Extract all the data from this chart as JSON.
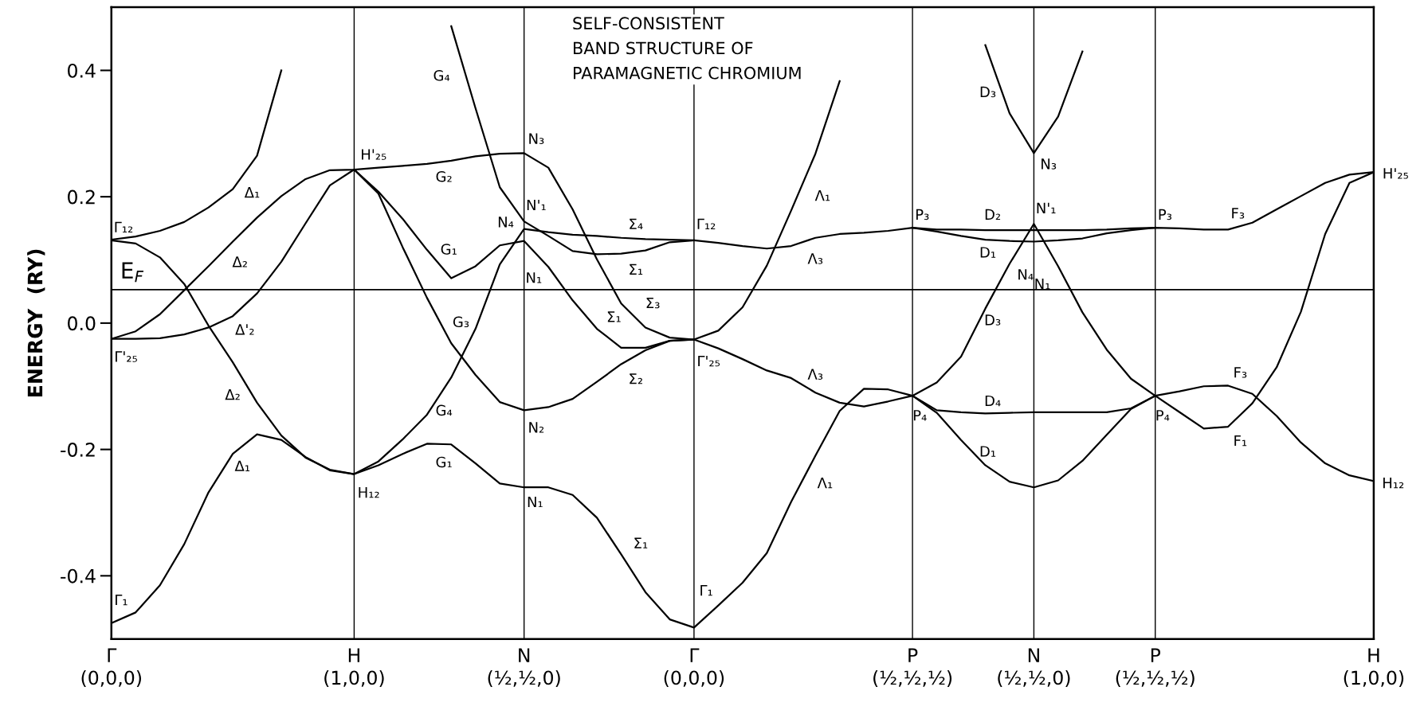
{
  "chart_data": {
    "type": "line",
    "title": "SELF-CONSISTENT\nBAND STRUCTURE OF\nPARAMAGNETIC CHROMIUM",
    "ylabel": "ENERGY  (RY)",
    "categories": [
      "Γ\n(0,0,0)",
      null,
      null,
      null,
      null,
      null,
      null,
      null,
      null,
      null,
      "H\n(1,0,0)",
      null,
      null,
      null,
      null,
      null,
      null,
      "N\n(½,½,0)",
      null,
      null,
      null,
      null,
      null,
      null,
      "Γ\n(0,0,0)",
      null,
      null,
      null,
      null,
      null,
      null,
      null,
      null,
      "P\n(½,½,½)",
      null,
      null,
      null,
      null,
      "N\n(½,½,0)",
      null,
      null,
      null,
      null,
      "P\n(½,½,½)",
      null,
      null,
      null,
      null,
      null,
      null,
      null,
      null,
      "H\n(1,0,0)"
    ],
    "ylim": [
      -0.5,
      0.5
    ],
    "yticks": [
      -0.4,
      -0.2,
      {
        "value": 0,
        "label": "0.0"
      },
      0.2,
      0.4
    ],
    "grid": "x",
    "legend": false,
    "ref_lines": [
      {
        "axis": "y",
        "value": 0.053,
        "label": "E$_{F}$",
        "color": "#000000"
      }
    ],
    "series": [
      {
        "color": "#000000",
        "values": [
          -0.475,
          -0.458,
          -0.415,
          -0.35,
          -0.268,
          -0.207,
          -0.176,
          -0.185,
          -0.212,
          -0.233,
          -0.239,
          -0.225,
          -0.207,
          -0.191,
          -0.192,
          -0.222,
          -0.254,
          -0.26,
          -0.26,
          -0.272,
          -0.308,
          -0.366,
          -0.426,
          -0.469,
          -0.482,
          -0.447,
          -0.411,
          -0.364,
          -0.283,
          -0.21,
          -0.139,
          -0.104,
          -0.105,
          -0.115,
          -0.142,
          -0.185,
          -0.225,
          -0.251,
          -0.26,
          -0.249,
          -0.218,
          -0.177,
          -0.136,
          -0.115,
          -0.108,
          -0.1,
          -0.099,
          -0.112,
          -0.147,
          -0.189,
          -0.222,
          -0.241,
          -0.25
        ]
      },
      {
        "color": "#000000",
        "values": [
          0.131,
          0.126,
          0.104,
          0.062,
          -0.004,
          -0.062,
          -0.126,
          -0.178,
          -0.213,
          -0.232,
          -0.239,
          -0.219,
          -0.184,
          -0.145,
          -0.086,
          -0.009,
          0.093,
          0.149,
          0.144,
          0.14,
          0.138,
          0.135,
          0.133,
          0.132,
          0.131,
          0.127,
          0.122,
          0.118,
          0.122,
          0.135,
          0.141,
          0.143,
          0.146,
          0.151,
          0.148,
          0.148,
          0.147,
          0.147,
          0.147,
          0.147,
          0.147,
          0.148,
          0.15,
          0.151,
          0.15,
          0.148,
          0.148,
          0.159,
          0.18,
          0.201,
          0.222,
          0.235,
          0.239
        ]
      },
      {
        "color": "#000000",
        "values": [
          -0.025,
          -0.013,
          0.014,
          0.052,
          0.09,
          0.129,
          0.167,
          0.201,
          0.228,
          0.242,
          0.243,
          0.246,
          0.249,
          0.252,
          0.257,
          0.264,
          0.268,
          0.269,
          0.246,
          0.18,
          0.101,
          0.031,
          -0.007,
          -0.023,
          -0.026,
          -0.04,
          -0.057,
          -0.075,
          -0.087,
          -0.11,
          -0.126,
          -0.132,
          -0.124,
          -0.115,
          -0.138,
          -0.141,
          -0.143,
          -0.142,
          -0.141,
          -0.141,
          -0.141,
          -0.141,
          -0.135,
          -0.115,
          -0.141,
          -0.167,
          -0.164,
          -0.127,
          -0.07,
          0.018,
          0.141,
          0.222,
          0.239
        ]
      },
      {
        "color": "#000000",
        "values": [
          -0.025,
          -0.025,
          -0.024,
          -0.018,
          -0.007,
          0.011,
          0.047,
          0.097,
          0.158,
          0.218,
          0.243,
          0.208,
          0.165,
          0.116,
          0.071,
          0.09,
          0.123,
          0.13,
          0.089,
          0.036,
          -0.009,
          -0.039,
          -0.039,
          -0.028,
          -0.026,
          -0.012,
          0.025,
          0.091,
          0.178,
          0.268,
          0.383,
          null,
          null,
          null,
          null,
          null,
          null,
          null,
          null,
          null,
          null,
          null,
          null,
          null,
          null,
          null,
          null,
          null,
          null,
          null,
          null,
          null,
          null
        ]
      },
      {
        "color": "#000000",
        "values": [
          null,
          null,
          null,
          null,
          null,
          null,
          null,
          null,
          null,
          null,
          0.243,
          0.205,
          0.12,
          0.04,
          -0.032,
          -0.082,
          -0.125,
          -0.138,
          -0.133,
          -0.12,
          -0.093,
          -0.065,
          -0.043,
          -0.028,
          -0.026,
          null,
          null,
          null,
          null,
          null,
          null,
          null,
          null,
          null,
          null,
          null,
          null,
          null,
          null,
          null,
          null,
          null,
          null,
          null,
          null,
          null,
          null,
          null,
          null,
          null,
          null,
          null,
          null
        ]
      },
      {
        "color": "#000000",
        "values": [
          null,
          null,
          null,
          null,
          null,
          null,
          null,
          null,
          null,
          null,
          null,
          null,
          null,
          null,
          0.47,
          0.34,
          0.215,
          0.161,
          0.138,
          0.114,
          0.109,
          0.11,
          0.115,
          0.128,
          0.131,
          null,
          null,
          null,
          null,
          null,
          null,
          null,
          null,
          null,
          null,
          null,
          null,
          null,
          null,
          null,
          null,
          null,
          null,
          null,
          null,
          null,
          null,
          null,
          null,
          null,
          null,
          null,
          null
        ]
      },
      {
        "color": "#000000",
        "values": [
          0.132,
          0.137,
          0.146,
          0.16,
          0.183,
          0.212,
          0.265,
          0.4,
          null,
          null,
          null,
          null,
          null,
          null,
          null,
          null,
          null,
          null,
          null,
          null,
          null,
          null,
          null,
          null,
          null,
          null,
          null,
          null,
          null,
          null,
          null,
          null,
          null,
          null,
          null,
          null,
          null,
          null,
          null,
          null,
          null,
          null,
          null,
          null,
          null,
          null,
          null,
          null,
          null,
          null,
          null,
          null,
          null
        ]
      },
      {
        "color": "#000000",
        "values": [
          null,
          null,
          null,
          null,
          null,
          null,
          null,
          null,
          null,
          null,
          null,
          null,
          null,
          null,
          null,
          null,
          null,
          null,
          null,
          null,
          null,
          null,
          null,
          null,
          null,
          null,
          null,
          null,
          null,
          null,
          null,
          null,
          null,
          0.151,
          0.145,
          0.138,
          0.132,
          0.13,
          0.129,
          0.131,
          0.134,
          0.142,
          0.147,
          0.151,
          null,
          null,
          null,
          null,
          null,
          null,
          null,
          null,
          null
        ]
      },
      {
        "color": "#000000",
        "values": [
          null,
          null,
          null,
          null,
          null,
          null,
          null,
          null,
          null,
          null,
          null,
          null,
          null,
          null,
          null,
          null,
          null,
          null,
          null,
          null,
          null,
          null,
          null,
          null,
          null,
          null,
          null,
          null,
          null,
          null,
          null,
          null,
          null,
          -0.115,
          -0.094,
          -0.053,
          0.023,
          0.094,
          0.157,
          0.09,
          0.017,
          -0.042,
          -0.088,
          -0.115,
          null,
          null,
          null,
          null,
          null,
          null,
          null,
          null,
          null
        ]
      },
      {
        "color": "#000000",
        "values": [
          null,
          null,
          null,
          null,
          null,
          null,
          null,
          null,
          null,
          null,
          null,
          null,
          null,
          null,
          null,
          null,
          null,
          null,
          null,
          null,
          null,
          null,
          null,
          null,
          null,
          null,
          null,
          null,
          null,
          null,
          null,
          null,
          null,
          null,
          null,
          null,
          0.44,
          0.332,
          0.269,
          0.327,
          0.43,
          null,
          null,
          null,
          null,
          null,
          null,
          null,
          null,
          null,
          null,
          null,
          null
        ]
      }
    ],
    "annotations": [
      "Γ₁₂",
      "Γ'₂₅",
      "Γ₁",
      "Δ₁",
      "Δ₂",
      "Δ'₂",
      "Δ₂",
      "Δ₁",
      "H'₂₅",
      "H₁₂",
      "G₄",
      "G₂",
      "G₁",
      "G₃",
      "G₄",
      "G₁",
      "N₃",
      "N'₁",
      "N₄",
      "N₁",
      "N₂",
      "N₁",
      "Σ₄",
      "Σ₁",
      "Σ₃",
      "Σ₁",
      "Σ₂",
      "Σ₁",
      "Γ₁₂",
      "Γ'₂₅",
      "Γ₁",
      "Λ₁",
      "Λ₃",
      "Λ₃",
      "Λ₁",
      "P₃",
      "P₄",
      "D₂",
      "D₁",
      "D₃",
      "D₄",
      "D₁",
      "D₃",
      "N₃",
      "N'₁",
      "N₄",
      "N₁",
      "P₃",
      "P₄",
      "F₃",
      "F₃",
      "F₁",
      "H'₂₅",
      "H₁₂"
    ]
  }
}
